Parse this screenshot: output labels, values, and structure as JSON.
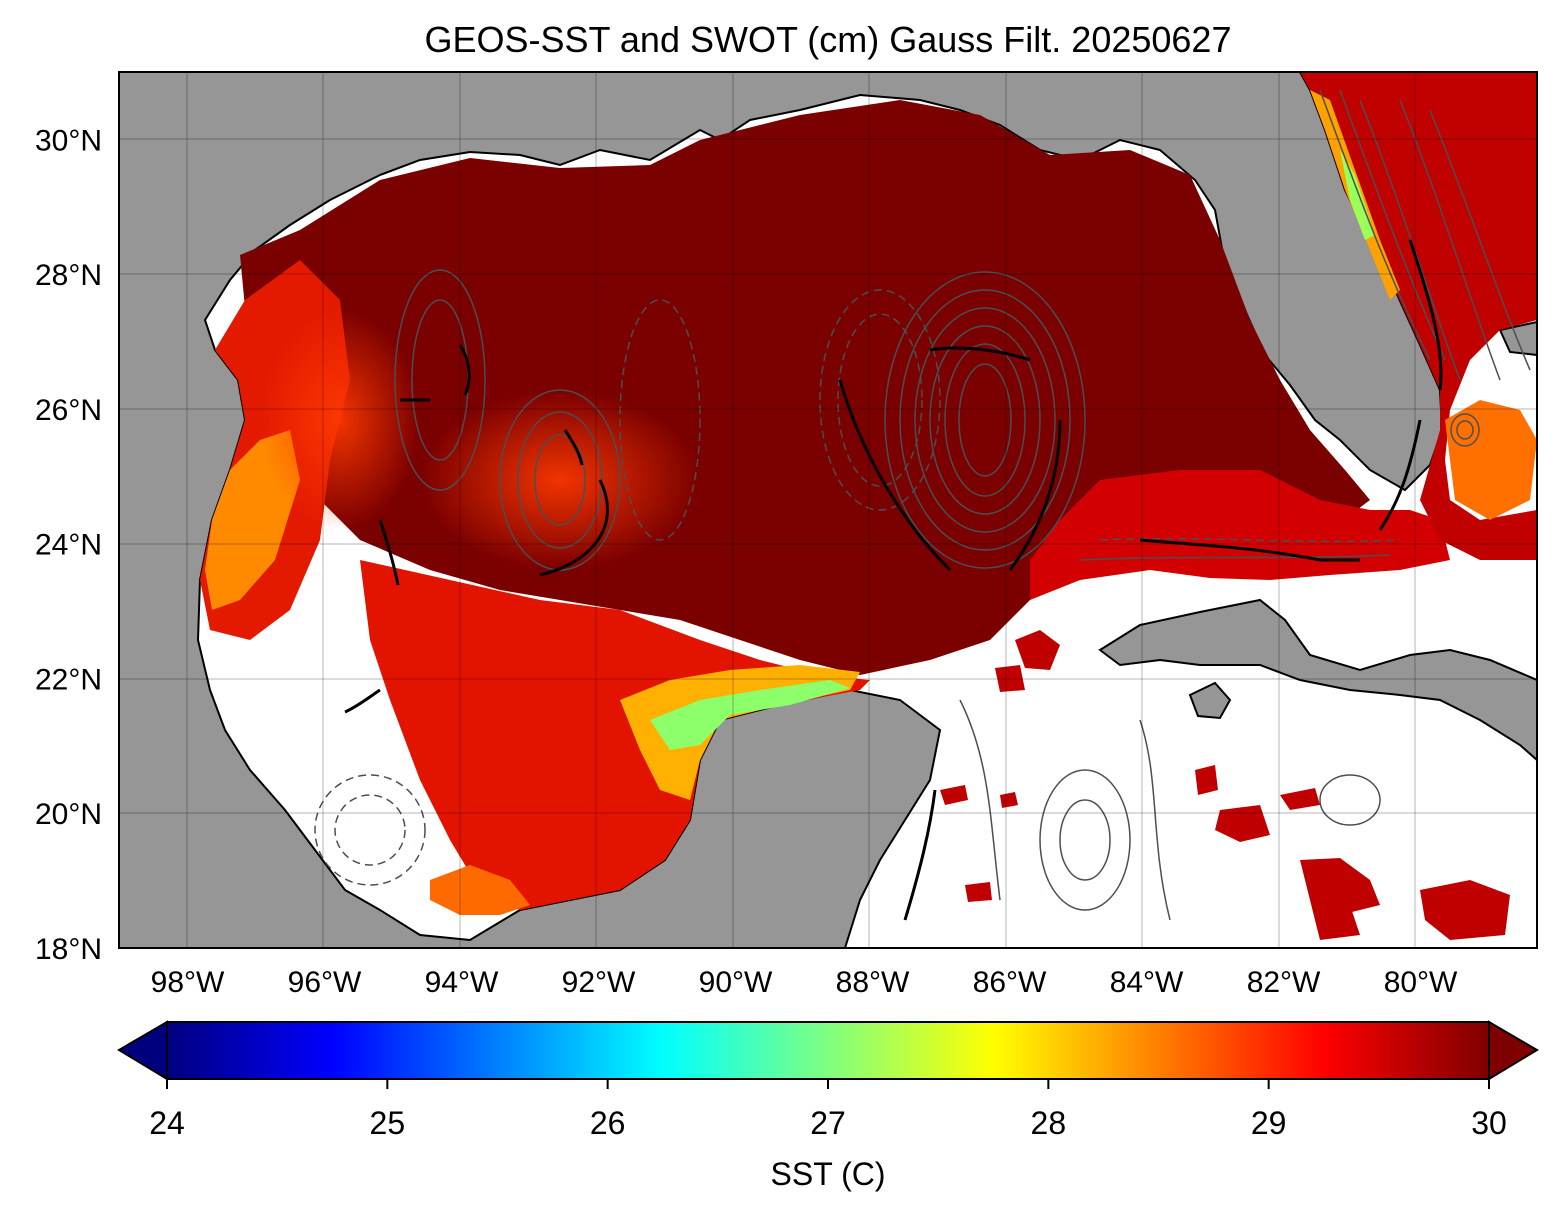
{
  "title": "GEOS-SST  and SWOT (cm) Gauss Filt. 20250627",
  "map": {
    "extent": {
      "lon_min": -99.0,
      "lon_max": -78.3,
      "lat_min": 18.0,
      "lat_max": 31.0
    },
    "lat_ticks": [
      {
        "value": 30,
        "label": "30°N"
      },
      {
        "value": 28,
        "label": "28°N"
      },
      {
        "value": 26,
        "label": "26°N"
      },
      {
        "value": 24,
        "label": "24°N"
      },
      {
        "value": 22,
        "label": "22°N"
      },
      {
        "value": 20,
        "label": "20°N"
      },
      {
        "value": 18,
        "label": "18°N"
      }
    ],
    "lon_ticks": [
      {
        "value": -98,
        "label": "98°W"
      },
      {
        "value": -96,
        "label": "96°W"
      },
      {
        "value": -94,
        "label": "94°W"
      },
      {
        "value": -92,
        "label": "92°W"
      },
      {
        "value": -90,
        "label": "90°W"
      },
      {
        "value": -88,
        "label": "88°W"
      },
      {
        "value": -86,
        "label": "86°W"
      },
      {
        "value": -84,
        "label": "84°W"
      },
      {
        "value": -82,
        "label": "82°W"
      },
      {
        "value": -80,
        "label": "80°W"
      }
    ],
    "gridlines": true,
    "land_color": "#969696",
    "nodata_color": "#ffffff",
    "contour_color": "#4a4f55"
  },
  "colorbar": {
    "label": "SST (C)",
    "min": 24,
    "max": 30,
    "extend": "both",
    "colormap": "jet",
    "ticks": [
      "24",
      "25",
      "26",
      "27",
      "28",
      "29",
      "30"
    ],
    "colors": [
      "#00007f",
      "#0000ff",
      "#007fff",
      "#00ffff",
      "#7fff7f",
      "#ffff00",
      "#ff7f00",
      "#ff0000",
      "#7f0000"
    ]
  }
}
